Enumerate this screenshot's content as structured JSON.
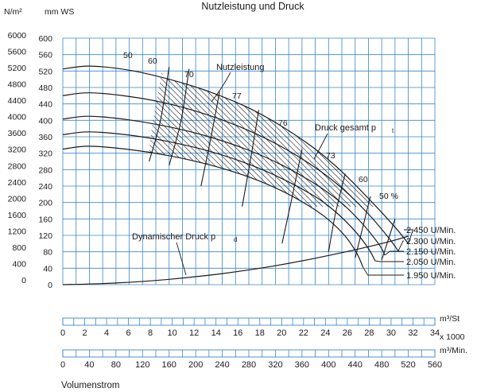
{
  "chart_data": {
    "type": "line",
    "title": "Nutzleistung und Druck",
    "y_left_unit": "N/m²",
    "y_right_unit": "mm WS",
    "y_pa_ticks": [
      "6000",
      "5600",
      "5200",
      "4800",
      "4400",
      "4000",
      "3600",
      "3200",
      "2800",
      "2400",
      "2000",
      "1600",
      "1200",
      "800",
      "400",
      "0"
    ],
    "y_mmws_ticks": [
      "600",
      "560",
      "520",
      "480",
      "440",
      "400",
      "360",
      "320",
      "280",
      "240",
      "200",
      "160",
      "120",
      "80",
      "40",
      "0"
    ],
    "ylim_mmws": [
      0,
      600
    ],
    "xlim_m3_min": [
      0,
      560
    ],
    "grid": true,
    "x_scale_1": {
      "unit": "m³/St",
      "unit_sub": "x 1000",
      "ticks": [
        "0",
        "2",
        "4",
        "6",
        "8",
        "10",
        "12",
        "14",
        "16",
        "18",
        "20",
        "22",
        "24",
        "26",
        "28",
        "30",
        "32",
        "34"
      ]
    },
    "x_scale_2": {
      "unit": "m³/Min.",
      "ticks": [
        "0",
        "40",
        "80",
        "120",
        "160",
        "200",
        "240",
        "280",
        "320",
        "360",
        "400",
        "440",
        "480",
        "520",
        "560"
      ]
    },
    "xlabel": "Volumenstrom",
    "series": [
      {
        "name": "2.450 U/Min.",
        "points": [
          [
            0,
            525
          ],
          [
            40,
            532
          ],
          [
            100,
            522
          ],
          [
            160,
            500
          ],
          [
            220,
            470
          ],
          [
            280,
            430
          ],
          [
            330,
            385
          ],
          [
            380,
            330
          ],
          [
            420,
            275
          ],
          [
            460,
            210
          ],
          [
            500,
            140
          ],
          [
            520,
            100
          ]
        ]
      },
      {
        "name": "2.300 U/Min.",
        "points": [
          [
            0,
            460
          ],
          [
            40,
            467
          ],
          [
            100,
            458
          ],
          [
            160,
            440
          ],
          [
            220,
            412
          ],
          [
            280,
            375
          ],
          [
            330,
            335
          ],
          [
            380,
            285
          ],
          [
            420,
            235
          ],
          [
            460,
            172
          ],
          [
            490,
            115
          ],
          [
            505,
            82
          ]
        ]
      },
      {
        "name": "2.150 U/Min.",
        "points": [
          [
            0,
            403
          ],
          [
            40,
            410
          ],
          [
            100,
            401
          ],
          [
            160,
            384
          ],
          [
            220,
            360
          ],
          [
            280,
            327
          ],
          [
            330,
            291
          ],
          [
            380,
            245
          ],
          [
            420,
            198
          ],
          [
            450,
            150
          ],
          [
            475,
            100
          ],
          [
            485,
            72
          ]
        ]
      },
      {
        "name": "2.050 U/Min.",
        "points": [
          [
            0,
            365
          ],
          [
            40,
            372
          ],
          [
            100,
            364
          ],
          [
            160,
            348
          ],
          [
            220,
            325
          ],
          [
            280,
            293
          ],
          [
            330,
            258
          ],
          [
            380,
            214
          ],
          [
            410,
            178
          ],
          [
            440,
            130
          ],
          [
            460,
            88
          ],
          [
            470,
            58
          ]
        ]
      },
      {
        "name": "1.950 U/Min.",
        "points": [
          [
            0,
            330
          ],
          [
            40,
            337
          ],
          [
            100,
            329
          ],
          [
            160,
            314
          ],
          [
            220,
            292
          ],
          [
            280,
            262
          ],
          [
            330,
            228
          ],
          [
            370,
            192
          ],
          [
            400,
            158
          ],
          [
            425,
            118
          ],
          [
            442,
            78
          ],
          [
            452,
            42
          ]
        ]
      }
    ],
    "dynamic_pressure": {
      "name": "Dynamischer Druck",
      "points": [
        [
          0,
          0
        ],
        [
          80,
          4
        ],
        [
          160,
          13
        ],
        [
          240,
          27
        ],
        [
          320,
          46
        ],
        [
          400,
          71
        ],
        [
          480,
          100
        ],
        [
          520,
          118
        ]
      ]
    },
    "efficiency_lines": [
      {
        "label": "50",
        "points": [
          [
            130,
            300
          ],
          [
            147,
            400
          ],
          [
            160,
            530
          ]
        ]
      },
      {
        "label": "60",
        "points": [
          [
            160,
            290
          ],
          [
            178,
            400
          ],
          [
            190,
            525
          ]
        ]
      },
      {
        "label": "70",
        "points": [
          [
            208,
            240
          ],
          [
            222,
            350
          ],
          [
            236,
            470
          ]
        ]
      },
      {
        "label": "77",
        "points": [
          [
            270,
            190
          ],
          [
            282,
            300
          ],
          [
            295,
            425
          ]
        ]
      },
      {
        "label": "76",
        "points": [
          [
            330,
            100
          ],
          [
            346,
            220
          ],
          [
            360,
            330
          ]
        ]
      },
      {
        "label": "73",
        "points": [
          [
            400,
            80
          ],
          [
            410,
            170
          ],
          [
            425,
            270
          ]
        ]
      },
      {
        "label": "60",
        "points": [
          [
            440,
            65
          ],
          [
            450,
            130
          ],
          [
            463,
            215
          ]
        ]
      },
      {
        "label": "50 %",
        "points": [
          [
            480,
            60
          ],
          [
            490,
            110
          ],
          [
            500,
            160
          ]
        ]
      }
    ],
    "annotations": {
      "nutzleistung": "Nutzleistung",
      "druck_gesamt": "Druck gesamt p",
      "druck_gesamt_sub": "t",
      "dynamischer_druck": "Dynamischer Druck p",
      "dynamischer_druck_sub": "d"
    }
  }
}
